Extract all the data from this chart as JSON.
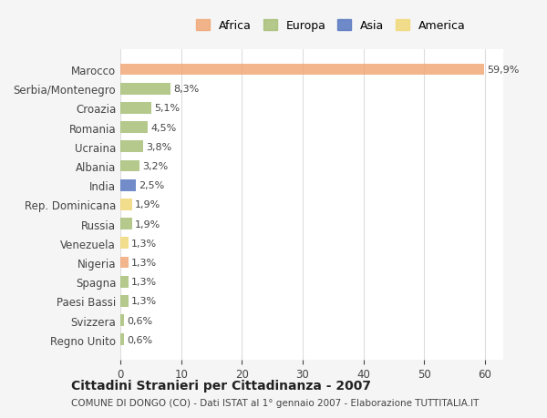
{
  "categories": [
    "Marocco",
    "Serbia/Montenegro",
    "Croazia",
    "Romania",
    "Ucraina",
    "Albania",
    "India",
    "Rep. Dominicana",
    "Russia",
    "Venezuela",
    "Nigeria",
    "Spagna",
    "Paesi Bassi",
    "Svizzera",
    "Regno Unito"
  ],
  "values": [
    59.9,
    8.3,
    5.1,
    4.5,
    3.8,
    3.2,
    2.5,
    1.9,
    1.9,
    1.3,
    1.3,
    1.3,
    1.3,
    0.6,
    0.6
  ],
  "labels": [
    "59,9%",
    "8,3%",
    "5,1%",
    "4,5%",
    "3,8%",
    "3,2%",
    "2,5%",
    "1,9%",
    "1,9%",
    "1,3%",
    "1,3%",
    "1,3%",
    "1,3%",
    "0,6%",
    "0,6%"
  ],
  "continents": [
    "Africa",
    "Europa",
    "Europa",
    "Europa",
    "Europa",
    "Europa",
    "Asia",
    "America",
    "Europa",
    "America",
    "Africa",
    "Europa",
    "Europa",
    "Europa",
    "Europa"
  ],
  "colors": {
    "Africa": "#F0A878",
    "Europa": "#A8C078",
    "Asia": "#5878C0",
    "America": "#F0D878"
  },
  "legend_order": [
    "Africa",
    "Europa",
    "Asia",
    "America"
  ],
  "title": "Cittadini Stranieri per Cittadinanza - 2007",
  "subtitle": "COMUNE DI DONGO (CO) - Dati ISTAT al 1° gennaio 2007 - Elaborazione TUTTITALIA.IT",
  "xlim": [
    0,
    63
  ],
  "xticks": [
    0,
    10,
    20,
    30,
    40,
    50,
    60
  ],
  "background_color": "#f5f5f5",
  "plot_bg_color": "#ffffff"
}
